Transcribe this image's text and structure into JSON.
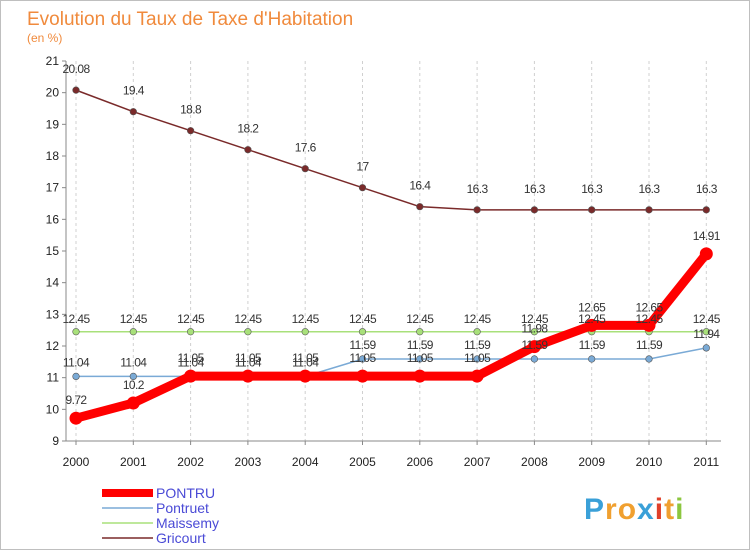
{
  "chart_data": {
    "type": "line",
    "title": "Evolution du Taux de Taxe d'Habitation",
    "subtitle": "(en %)",
    "xlabel": "",
    "ylabel": "",
    "x": [
      "2000",
      "2001",
      "2002",
      "2003",
      "2004",
      "2005",
      "2006",
      "2007",
      "2008",
      "2009",
      "2010",
      "2011"
    ],
    "ylim": [
      9,
      21
    ],
    "yticks": [
      9,
      10,
      11,
      12,
      13,
      14,
      15,
      16,
      17,
      18,
      19,
      20,
      21
    ],
    "grid": "vertical-dashed",
    "legend_position": "bottom-left",
    "series": [
      {
        "name": "Gricourt",
        "color": "#7a2a2a",
        "values": [
          20.08,
          19.4,
          18.8,
          18.2,
          17.6,
          17,
          16.4,
          16.3,
          16.3,
          16.3,
          16.3,
          16.3
        ],
        "labels": [
          "20.08",
          "19.4",
          "18.8",
          "18.2",
          "17.6",
          "17",
          "16.4",
          "16.3",
          "16.3",
          "16.3",
          "16.3",
          "16.3"
        ]
      },
      {
        "name": "Maissemy",
        "color": "#a8e07a",
        "values": [
          12.45,
          12.45,
          12.45,
          12.45,
          12.45,
          12.45,
          12.45,
          12.45,
          12.45,
          12.45,
          12.45,
          12.45
        ],
        "labels": [
          "12.45",
          "12.45",
          "12.45",
          "12.45",
          "12.45",
          "12.45",
          "12.45",
          "12.45",
          "12.45",
          "12.45",
          "12.45",
          "12.45"
        ]
      },
      {
        "name": "Pontruet",
        "color": "#7aaad6",
        "values": [
          11.04,
          11.04,
          11.04,
          11.04,
          11.04,
          11.59,
          11.59,
          11.59,
          11.59,
          11.59,
          11.59,
          11.94
        ],
        "labels": [
          "11.04",
          "11.04",
          "11.04",
          "11.04",
          "11.04",
          "11.59",
          "11.59",
          "11.59",
          "11.59",
          "11.59",
          "11.59",
          "11.94"
        ]
      },
      {
        "name": "PONTRU",
        "color": "#ff0000",
        "values": [
          9.72,
          10.2,
          11.05,
          11.05,
          11.05,
          11.05,
          11.05,
          11.05,
          11.98,
          12.65,
          12.65,
          14.91
        ],
        "labels": [
          "9.72",
          "10.2",
          "11.05",
          "11.05",
          "11.05",
          "11.05",
          "11.05",
          "11.05",
          "11.98",
          "12.65",
          "12.65",
          "14.91"
        ]
      }
    ]
  },
  "legend": [
    {
      "name": "PONTRU",
      "color": "#ff0000",
      "text_color": "#4a4ad6"
    },
    {
      "name": "Pontruet",
      "color": "#7aaad6",
      "text_color": "#4a4ad6"
    },
    {
      "name": "Maissemy",
      "color": "#a8e07a",
      "text_color": "#4a4ad6"
    },
    {
      "name": "Gricourt",
      "color": "#7a2a2a",
      "text_color": "#4a4ad6"
    }
  ],
  "logo": {
    "letters": [
      "P",
      "r",
      "o",
      "x",
      "i",
      "t",
      "i"
    ],
    "colors": [
      "#3aa0d8",
      "#f0a030",
      "#f0a030",
      "#3aa0d8",
      "#e0402a",
      "#f0a030",
      "#8cc63f"
    ]
  }
}
